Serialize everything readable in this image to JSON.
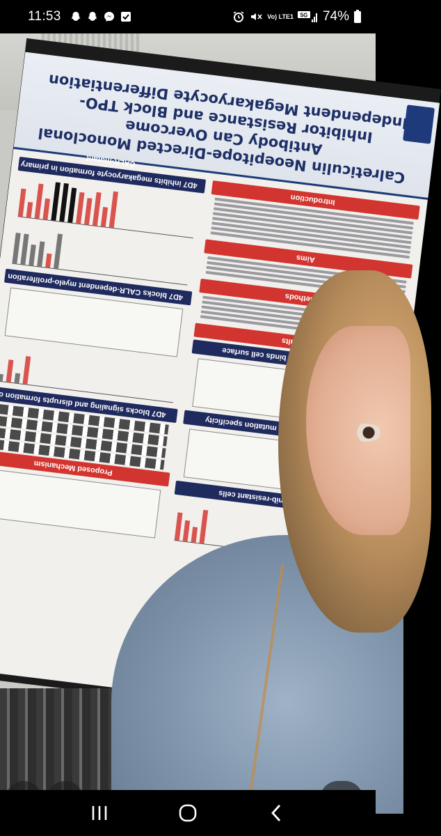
{
  "status_bar": {
    "time": "11:53",
    "notifications": [
      "snapchat-icon",
      "snapchat-icon",
      "messenger-icon",
      "checkbox-icon"
    ],
    "volte_label": "Vo) LTE1",
    "network": "5G",
    "battery_percent": "74%"
  },
  "poster": {
    "title_line1": "Calreticulin Neoepitope-Directed Monoclonal Antibody Can Overcome",
    "title_line2": "Inhibitor Resistance and Block TPO-Independent Megakaryocyte Differentiation",
    "sections_left": [
      "4D7 inhibits megakaryocyte formation in primary CALR-mutant",
      "4D7 blocks CALR-dependent myelo-proliferation",
      "4D7 blocks signaling and disrupts formation of",
      "Proposed Mechanism"
    ],
    "sections_right": [
      "Introduction",
      "Aims",
      "Methods",
      "Results",
      "4D7 mAb specifically binds cell surface",
      "proliferation and allows mutation specificity",
      "4D7 in ruxolitinib-resistant cells"
    ]
  },
  "actions": {
    "like": "heart-icon",
    "add": "add-to-story-icon",
    "send": "send-icon"
  },
  "nav": {
    "recents": "recents-icon",
    "home": "home-icon",
    "back": "back-icon"
  },
  "colors": {
    "status_bg": "#000000",
    "poster_navy": "#1f2a5e",
    "poster_red": "#d2352f",
    "fab_bg": "rgba(30,30,30,0.65)"
  }
}
